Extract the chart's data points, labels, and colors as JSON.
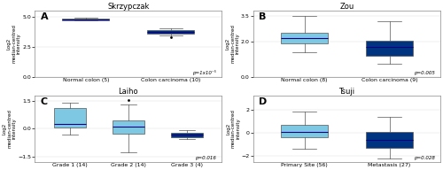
{
  "panels": {
    "A": {
      "title": "Skrzypczak",
      "label": "A",
      "pval": "p=1x10⁻⁵",
      "ylabel": "Log2\nmedian-centred\nintensity",
      "ylim": [
        0,
        5.5
      ],
      "yticks": [
        0,
        2.5,
        5
      ],
      "groups": [
        {
          "label": "Normal colon (5)",
          "color": "#7ec8e3",
          "median": 4.75,
          "q1": 4.7,
          "q3": 4.85,
          "whislo": 4.65,
          "whishi": 4.9,
          "fliers": []
        },
        {
          "label": "Colon carcinoma (10)",
          "color": "#003380",
          "median": 3.75,
          "q1": 3.6,
          "q3": 3.9,
          "whislo": 3.45,
          "whishi": 4.0,
          "fliers": [
            3.28
          ]
        }
      ]
    },
    "B": {
      "title": "Zou",
      "label": "B",
      "pval": "p=0.005",
      "ylabel": "Log2\nmedian-centred\nintensity",
      "ylim": [
        0,
        3.8
      ],
      "yticks": [
        0,
        2,
        3.5
      ],
      "groups": [
        {
          "label": "Normal colon (8)",
          "color": "#7ec8e3",
          "median": 2.2,
          "q1": 1.9,
          "q3": 2.55,
          "whislo": 1.4,
          "whishi": 3.5,
          "fliers": []
        },
        {
          "label": "Colon carcinoma (9)",
          "color": "#003380",
          "median": 1.7,
          "q1": 1.2,
          "q3": 2.05,
          "whislo": 0.75,
          "whishi": 3.2,
          "fliers": []
        }
      ]
    },
    "C": {
      "title": "Laiho",
      "label": "C",
      "pval": "p=0.016",
      "ylabel": "Log2\nmedian-centred\nintensity",
      "ylim": [
        -1.8,
        1.8
      ],
      "yticks": [
        -1.5,
        0,
        1.5
      ],
      "groups": [
        {
          "label": "Grade 1 (14)",
          "color": "#7ec8e3",
          "median": 0.25,
          "q1": 0.05,
          "q3": 1.1,
          "whislo": -0.3,
          "whishi": 1.4,
          "fliers": []
        },
        {
          "label": "Grade 2 (14)",
          "color": "#7ec8e3",
          "median": 0.1,
          "q1": -0.25,
          "q3": 0.45,
          "whislo": -1.3,
          "whishi": 1.3,
          "fliers": [
            1.55
          ]
        },
        {
          "label": "Grade 3 (4)",
          "color": "#003380",
          "median": -0.3,
          "q1": -0.45,
          "q3": -0.2,
          "whislo": -0.55,
          "whishi": -0.1,
          "fliers": []
        }
      ]
    },
    "D": {
      "title": "Tsuji",
      "label": "D",
      "pval": "p=0.028",
      "ylabel": "Log2\nmedian-centred\nintensity",
      "ylim": [
        -2.5,
        3.2
      ],
      "yticks": [
        -2,
        0,
        2
      ],
      "groups": [
        {
          "label": "Primary Site (56)",
          "color": "#7ec8e3",
          "median": 0.1,
          "q1": -0.4,
          "q3": 0.65,
          "whislo": -1.4,
          "whishi": 1.8,
          "fliers": []
        },
        {
          "label": "Metastasis (27)",
          "color": "#003380",
          "median": -0.6,
          "q1": -1.3,
          "q3": 0.05,
          "whislo": -2.2,
          "whishi": 1.4,
          "fliers": []
        }
      ]
    }
  }
}
